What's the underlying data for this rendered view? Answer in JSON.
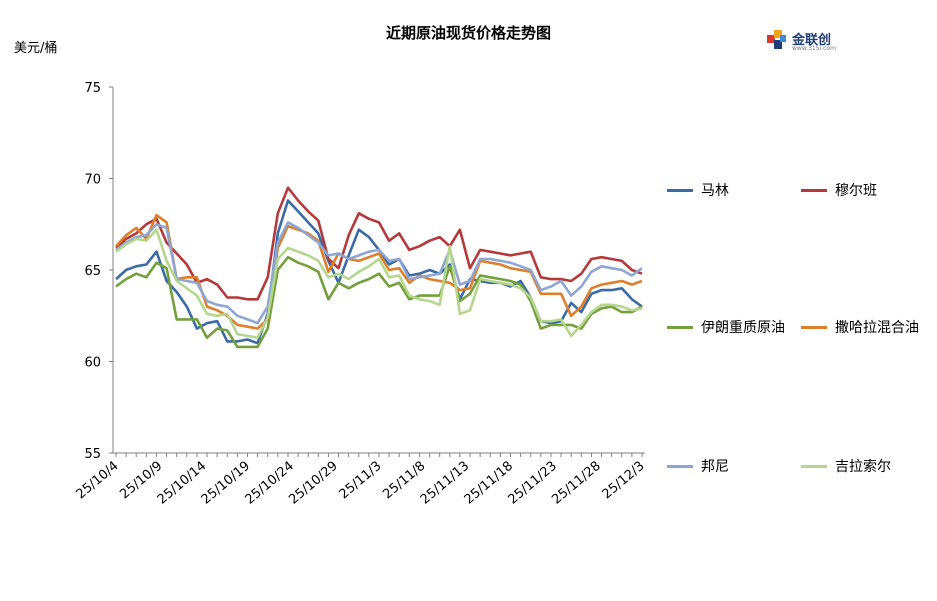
{
  "title": "近期原油现货价格走势图",
  "unit_label": "美元/桶",
  "logo": {
    "name": "金联创",
    "sub": "www.315i.com"
  },
  "chart_data": {
    "type": "line",
    "title": "近期原油现货价格走势图",
    "ylabel": "美元/桶",
    "ylim": [
      55,
      75
    ],
    "yticks": [
      55,
      60,
      65,
      70,
      75
    ],
    "xtick_labels": [
      "25/10/4",
      "25/10/9",
      "25/10/14",
      "25/10/19",
      "25/10/24",
      "25/10/29",
      "25/11/3",
      "25/11/8",
      "25/11/13",
      "25/11/18",
      "25/11/23",
      "25/11/28",
      "25/12/3"
    ],
    "grid": false,
    "legend": "right",
    "series": [
      {
        "name": "马林",
        "color": "#3a6aa8",
        "values": [
          64.5,
          65.0,
          65.2,
          65.3,
          66.0,
          64.4,
          63.8,
          63.0,
          61.8,
          62.1,
          62.2,
          61.1,
          61.1,
          61.2,
          61.0,
          62.6,
          67.0,
          68.8,
          68.2,
          67.6,
          67.0,
          65.5,
          64.3,
          65.8,
          67.2,
          66.8,
          66.1,
          65.3,
          65.6,
          64.7,
          64.8,
          65.0,
          64.8,
          65.3,
          63.4,
          64.5,
          64.4,
          64.3,
          64.3,
          64.1,
          64.4,
          63.5,
          62.2,
          62.1,
          62.2,
          63.2,
          62.7,
          63.7,
          63.9,
          63.9,
          64.0,
          63.4,
          63.0
        ]
      },
      {
        "name": "穆尔班",
        "color": "#b5393a",
        "values": [
          66.2,
          66.7,
          67.0,
          67.5,
          67.8,
          66.5,
          65.9,
          65.3,
          64.3,
          64.5,
          64.2,
          63.5,
          63.5,
          63.4,
          63.4,
          64.6,
          68.1,
          69.5,
          68.8,
          68.2,
          67.7,
          65.6,
          65.1,
          66.9,
          68.1,
          67.8,
          67.6,
          66.6,
          67.0,
          66.1,
          66.3,
          66.6,
          66.8,
          66.3,
          67.2,
          65.1,
          66.1,
          66.0,
          65.9,
          65.8,
          65.9,
          66.0,
          64.6,
          64.5,
          64.5,
          64.4,
          64.8,
          65.6,
          65.7,
          65.6,
          65.5,
          65.0,
          64.8
        ]
      },
      {
        "name": "伊朗重质原油",
        "color": "#73a03d",
        "values": [
          64.1,
          64.5,
          64.8,
          64.6,
          65.4,
          65.1,
          62.3,
          62.3,
          62.3,
          61.3,
          61.8,
          61.7,
          60.8,
          60.8,
          60.8,
          61.8,
          65.0,
          65.7,
          65.4,
          65.2,
          64.9,
          63.4,
          64.3,
          64.0,
          64.3,
          64.5,
          64.8,
          64.1,
          64.3,
          63.4,
          63.6,
          63.6,
          63.6,
          65.2,
          63.3,
          63.7,
          64.7,
          64.6,
          64.5,
          64.4,
          64.2,
          63.3,
          61.8,
          62.0,
          62.0,
          62.0,
          61.8,
          62.6,
          62.9,
          63.0,
          62.7,
          62.7,
          63.0
        ]
      },
      {
        "name": "撒哈拉混合油",
        "color": "#e07f2b",
        "values": [
          66.3,
          66.9,
          67.3,
          66.7,
          68.0,
          67.6,
          64.5,
          64.6,
          64.6,
          63.0,
          62.8,
          62.5,
          62.0,
          61.9,
          61.8,
          62.3,
          66.2,
          67.4,
          67.2,
          67.0,
          66.6,
          64.9,
          65.9,
          65.6,
          65.5,
          65.7,
          65.9,
          65.0,
          65.1,
          64.3,
          64.7,
          64.5,
          64.4,
          64.3,
          63.9,
          64.0,
          65.5,
          65.4,
          65.3,
          65.1,
          65.0,
          64.9,
          63.7,
          63.7,
          63.7,
          62.5,
          63.0,
          64.0,
          64.2,
          64.3,
          64.4,
          64.2,
          64.4
        ]
      },
      {
        "name": "邦尼",
        "color": "#8da7d4",
        "values": [
          66.1,
          66.5,
          66.8,
          66.9,
          67.5,
          67.3,
          64.5,
          64.4,
          64.3,
          63.3,
          63.1,
          63.0,
          62.5,
          62.3,
          62.1,
          63.0,
          66.5,
          67.6,
          67.3,
          66.9,
          66.5,
          65.8,
          65.9,
          65.6,
          65.8,
          66.0,
          66.1,
          65.5,
          65.6,
          64.5,
          64.6,
          64.7,
          64.8,
          66.1,
          64.2,
          64.4,
          65.6,
          65.6,
          65.5,
          65.4,
          65.2,
          65.0,
          63.9,
          64.1,
          64.4,
          63.6,
          64.1,
          64.9,
          65.2,
          65.1,
          65.0,
          64.7,
          65.1
        ]
      },
      {
        "name": "吉拉索尔",
        "color": "#b5d68d",
        "values": [
          66.0,
          66.4,
          66.7,
          66.6,
          67.2,
          65.5,
          64.4,
          64.0,
          63.6,
          62.6,
          62.5,
          62.6,
          61.5,
          61.4,
          61.3,
          62.4,
          65.6,
          66.2,
          66.0,
          65.8,
          65.5,
          64.6,
          64.8,
          64.5,
          64.9,
          65.2,
          65.6,
          64.6,
          64.7,
          63.6,
          63.4,
          63.3,
          63.1,
          66.3,
          62.6,
          62.8,
          64.5,
          64.4,
          64.3,
          64.2,
          64.0,
          63.5,
          62.2,
          62.2,
          62.3,
          61.4,
          62.0,
          62.7,
          63.1,
          63.1,
          63.0,
          62.8,
          62.9
        ]
      }
    ]
  }
}
